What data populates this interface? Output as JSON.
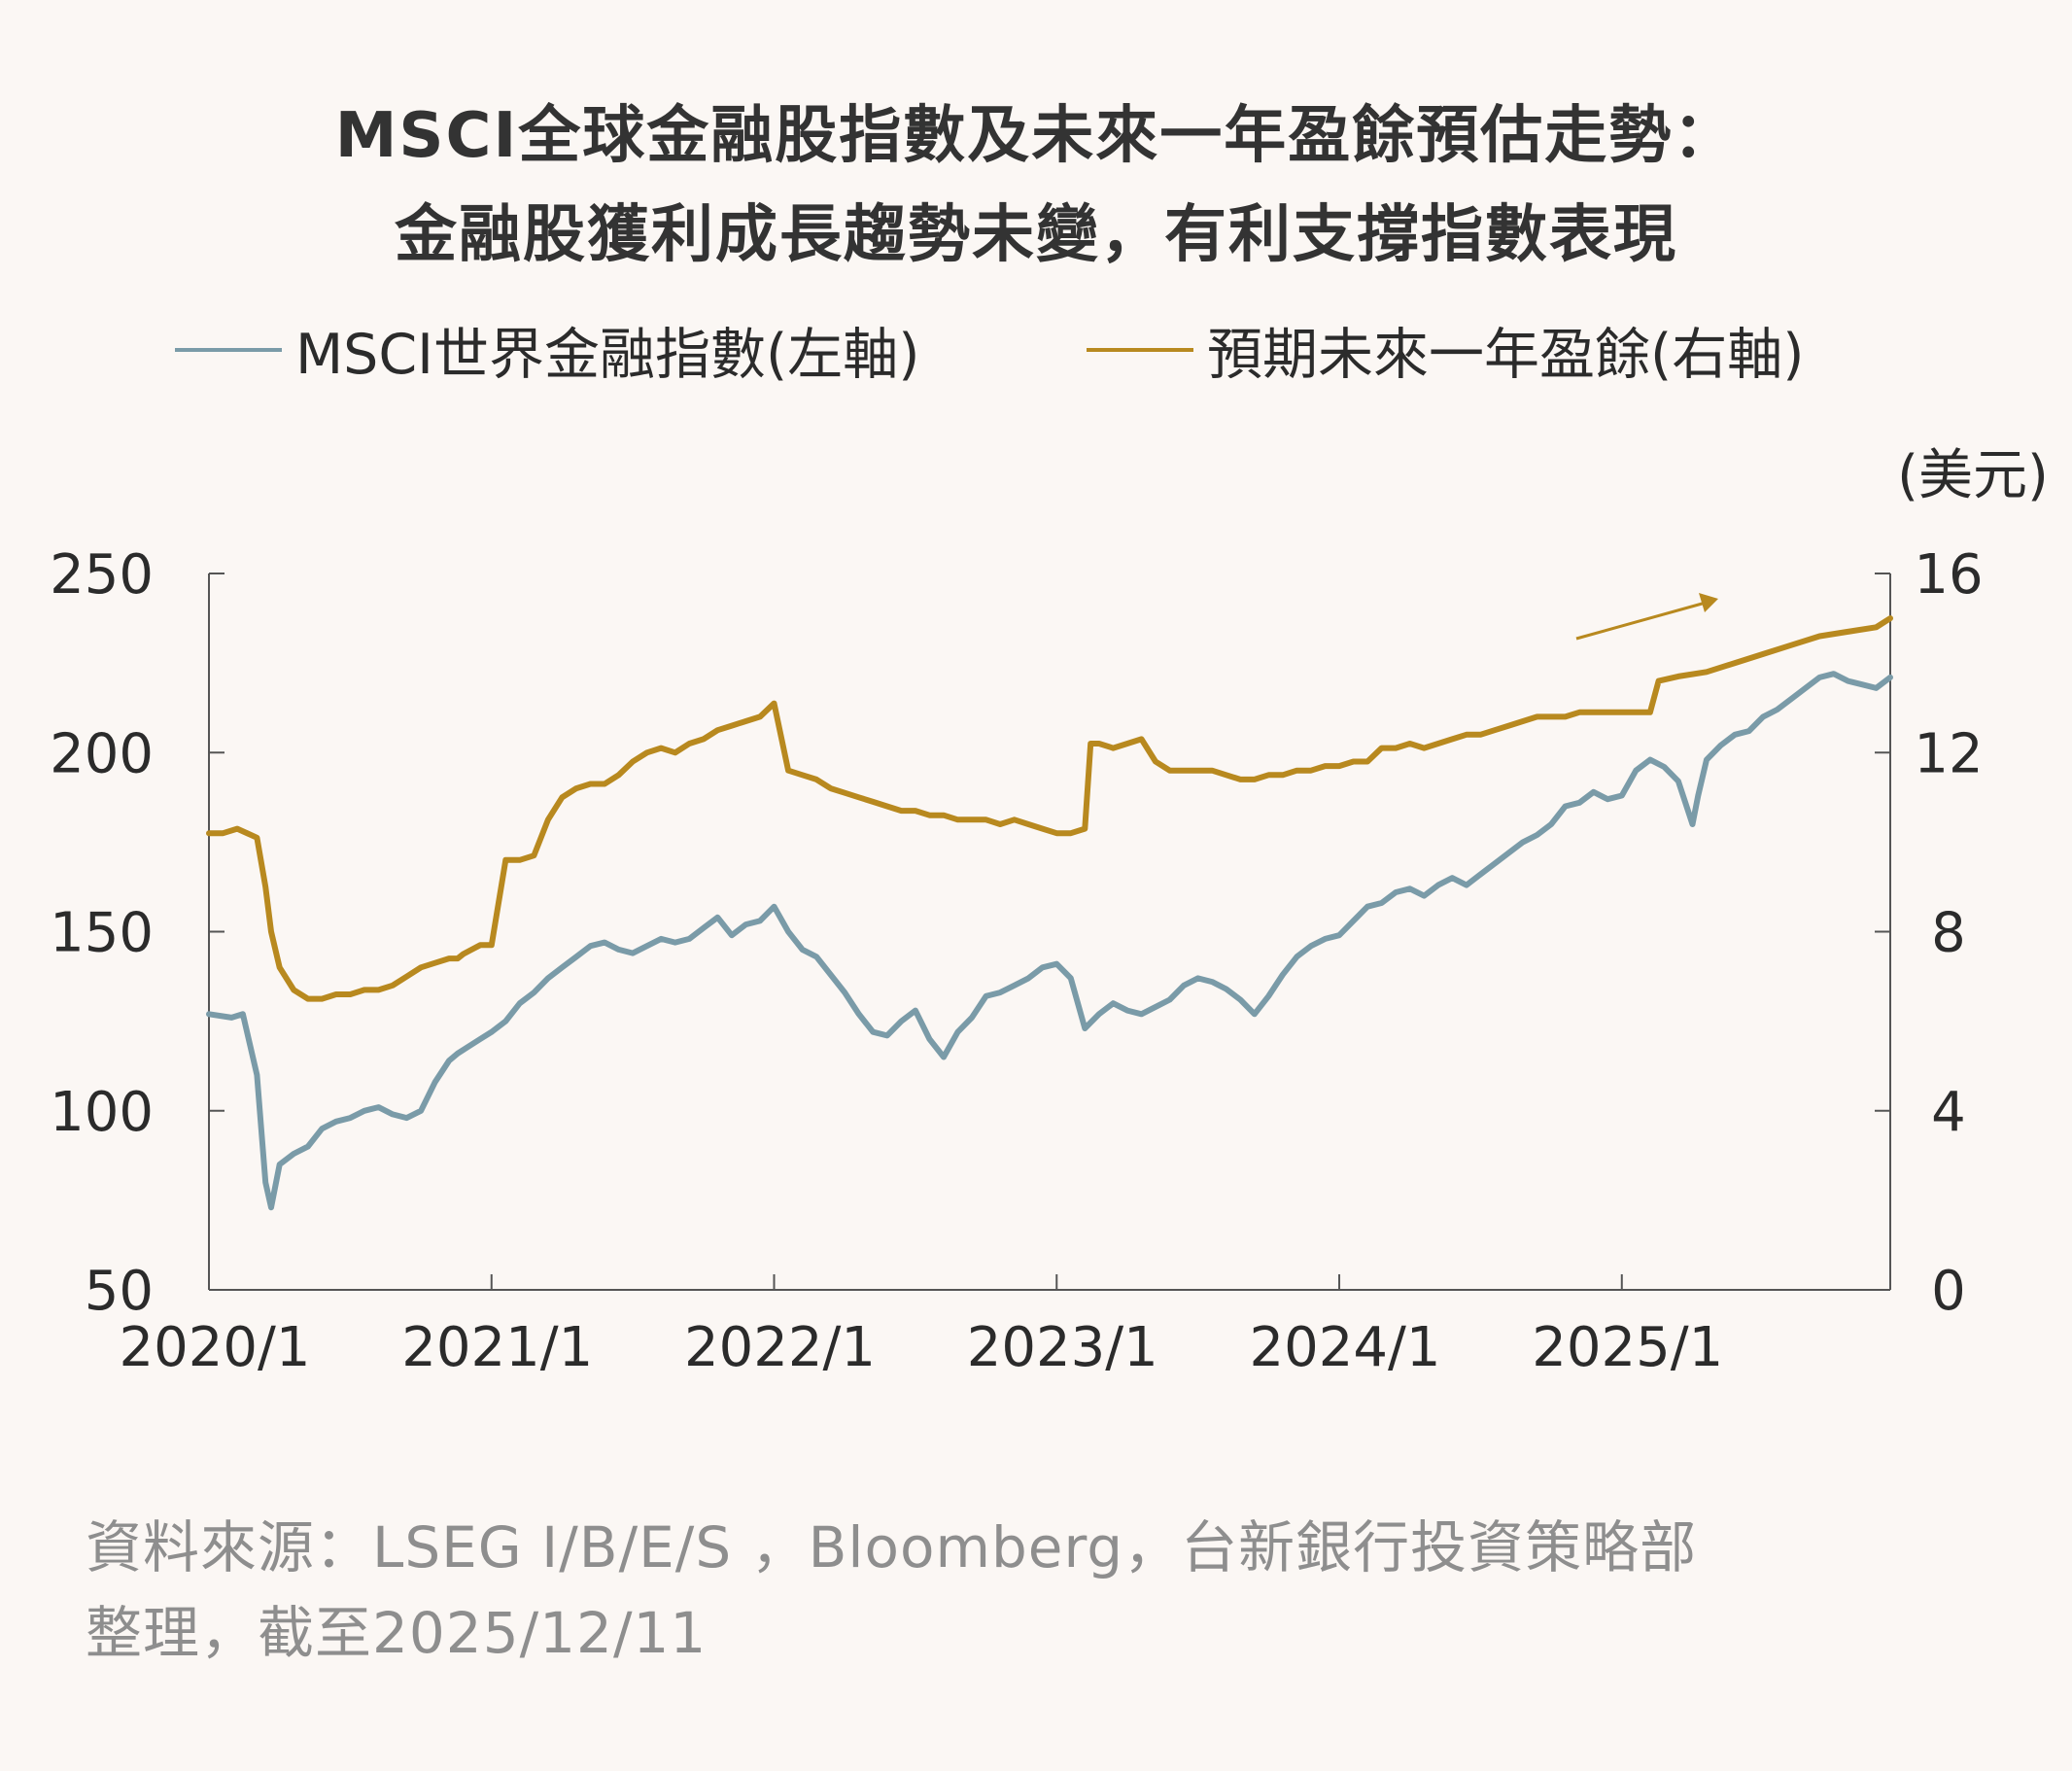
{
  "title": {
    "line1": "MSCI全球金融股指數及未來一年盈餘預估走勢：",
    "line2": "金融股獲利成長趨勢未變，有利支撐指數表現"
  },
  "legend": {
    "items": [
      {
        "label": "MSCI世界金融指數(左軸)",
        "color": "#7A9BA8"
      },
      {
        "label": "預期未來一年盈餘(右軸)",
        "color": "#B8891F"
      }
    ]
  },
  "source": {
    "line1": "資料來源：LSEG I/B/E/S ，Bloomberg，台新銀行投資策略部",
    "line2": "整理，截至2025/12/11"
  },
  "colors": {
    "background": "#FBF7F4",
    "index_line": "#7A9BA8",
    "eps_line": "#B8891F",
    "axis": "#555555",
    "arrow": "#B8891F"
  },
  "chart_data": {
    "type": "line",
    "x_ticks": [
      "2020/1",
      "2021/1",
      "2022/1",
      "2023/1",
      "2024/1",
      "2025/1"
    ],
    "x_range": [
      2020.0,
      2025.95
    ],
    "left_axis": {
      "ticks": [
        "250",
        "200",
        "150",
        "100",
        "50"
      ],
      "ylim": [
        50,
        250
      ]
    },
    "right_axis": {
      "unit": "(美元)",
      "ticks": [
        "16",
        "12",
        "8",
        "4",
        "0"
      ],
      "ylim": [
        0,
        16
      ]
    },
    "grid": false,
    "legend_position": "top",
    "annotation": "upward arrow near 2024/10 to 2025/2 indicating rising earnings trend",
    "series": [
      {
        "name": "MSCI世界金融指數(左軸)",
        "axis": "left",
        "x": [
          2020.0,
          2020.08,
          2020.12,
          2020.17,
          2020.2,
          2020.22,
          2020.25,
          2020.3,
          2020.35,
          2020.4,
          2020.45,
          2020.5,
          2020.55,
          2020.6,
          2020.65,
          2020.7,
          2020.75,
          2020.8,
          2020.85,
          2020.88,
          2020.92,
          2020.96,
          2021.0,
          2021.05,
          2021.1,
          2021.15,
          2021.2,
          2021.25,
          2021.3,
          2021.35,
          2021.4,
          2021.45,
          2021.5,
          2021.55,
          2021.6,
          2021.65,
          2021.7,
          2021.75,
          2021.8,
          2021.85,
          2021.9,
          2021.95,
          2022.0,
          2022.05,
          2022.1,
          2022.15,
          2022.2,
          2022.25,
          2022.3,
          2022.35,
          2022.4,
          2022.45,
          2022.5,
          2022.55,
          2022.6,
          2022.65,
          2022.7,
          2022.75,
          2022.8,
          2022.85,
          2022.9,
          2022.95,
          2023.0,
          2023.05,
          2023.1,
          2023.15,
          2023.2,
          2023.25,
          2023.3,
          2023.35,
          2023.4,
          2023.45,
          2023.5,
          2023.55,
          2023.6,
          2023.65,
          2023.7,
          2023.75,
          2023.8,
          2023.85,
          2023.9,
          2023.95,
          2024.0,
          2024.05,
          2024.1,
          2024.15,
          2024.2,
          2024.25,
          2024.3,
          2024.35,
          2024.4,
          2024.45,
          2024.5,
          2024.55,
          2024.6,
          2024.65,
          2024.7,
          2024.75,
          2024.8,
          2024.85,
          2024.9,
          2024.95,
          2025.0,
          2025.05,
          2025.1,
          2025.15,
          2025.2,
          2025.25,
          2025.27,
          2025.3,
          2025.35,
          2025.4,
          2025.45,
          2025.5,
          2025.55,
          2025.6,
          2025.65,
          2025.7,
          2025.75,
          2025.8,
          2025.85,
          2025.9,
          2025.95
        ],
        "values": [
          127,
          126,
          127,
          110,
          80,
          73,
          85,
          88,
          90,
          95,
          97,
          98,
          100,
          101,
          99,
          98,
          100,
          108,
          114,
          116,
          118,
          120,
          122,
          125,
          130,
          133,
          137,
          140,
          143,
          146,
          147,
          145,
          144,
          146,
          148,
          147,
          148,
          151,
          154,
          149,
          152,
          153,
          157,
          150,
          145,
          143,
          138,
          133,
          127,
          122,
          121,
          125,
          128,
          120,
          115,
          122,
          126,
          132,
          133,
          135,
          137,
          140,
          141,
          137,
          123,
          127,
          130,
          128,
          127,
          129,
          131,
          135,
          137,
          136,
          134,
          131,
          127,
          132,
          138,
          143,
          146,
          148,
          149,
          153,
          157,
          158,
          161,
          162,
          160,
          163,
          165,
          163,
          166,
          169,
          172,
          175,
          177,
          180,
          185,
          186,
          189,
          187,
          188,
          195,
          198,
          196,
          192,
          180,
          188,
          198,
          202,
          205,
          206,
          210,
          212,
          215,
          218,
          221,
          222,
          220,
          219,
          218,
          221
        ]
      },
      {
        "name": "預期未來一年盈餘(右軸)",
        "axis": "right",
        "x": [
          2020.0,
          2020.05,
          2020.1,
          2020.17,
          2020.2,
          2020.22,
          2020.25,
          2020.3,
          2020.35,
          2020.4,
          2020.45,
          2020.5,
          2020.55,
          2020.6,
          2020.65,
          2020.7,
          2020.75,
          2020.8,
          2020.85,
          2020.88,
          2020.9,
          2020.93,
          2020.96,
          2021.0,
          2021.05,
          2021.1,
          2021.15,
          2021.2,
          2021.25,
          2021.3,
          2021.35,
          2021.4,
          2021.45,
          2021.5,
          2021.55,
          2021.6,
          2021.65,
          2021.7,
          2021.75,
          2021.8,
          2021.85,
          2021.9,
          2021.95,
          2022.0,
          2022.05,
          2022.1,
          2022.15,
          2022.2,
          2022.25,
          2022.3,
          2022.35,
          2022.4,
          2022.45,
          2022.5,
          2022.55,
          2022.6,
          2022.65,
          2022.7,
          2022.75,
          2022.8,
          2022.85,
          2022.9,
          2022.95,
          2023.0,
          2023.05,
          2023.1,
          2023.12,
          2023.15,
          2023.2,
          2023.25,
          2023.3,
          2023.35,
          2023.4,
          2023.45,
          2023.5,
          2023.55,
          2023.6,
          2023.65,
          2023.7,
          2023.75,
          2023.8,
          2023.85,
          2023.9,
          2023.95,
          2024.0,
          2024.05,
          2024.1,
          2024.15,
          2024.2,
          2024.25,
          2024.3,
          2024.35,
          2024.4,
          2024.45,
          2024.5,
          2024.55,
          2024.6,
          2024.65,
          2024.7,
          2024.75,
          2024.8,
          2024.85,
          2024.9,
          2024.95,
          2025.0,
          2025.05,
          2025.1,
          2025.13,
          2025.2,
          2025.3,
          2025.4,
          2025.5,
          2025.6,
          2025.7,
          2025.8,
          2025.9,
          2025.95
        ],
        "values": [
          10.2,
          10.2,
          10.3,
          10.1,
          9.0,
          8.0,
          7.2,
          6.7,
          6.5,
          6.5,
          6.6,
          6.6,
          6.7,
          6.7,
          6.8,
          7.0,
          7.2,
          7.3,
          7.4,
          7.4,
          7.5,
          7.6,
          7.7,
          7.7,
          9.6,
          9.6,
          9.7,
          10.5,
          11.0,
          11.2,
          11.3,
          11.3,
          11.5,
          11.8,
          12.0,
          12.1,
          12.0,
          12.2,
          12.3,
          12.5,
          12.6,
          12.7,
          12.8,
          13.1,
          11.6,
          11.5,
          11.4,
          11.2,
          11.1,
          11.0,
          10.9,
          10.8,
          10.7,
          10.7,
          10.6,
          10.6,
          10.5,
          10.5,
          10.5,
          10.4,
          10.5,
          10.4,
          10.3,
          10.2,
          10.2,
          10.3,
          12.2,
          12.2,
          12.1,
          12.2,
          12.3,
          11.8,
          11.6,
          11.6,
          11.6,
          11.6,
          11.5,
          11.4,
          11.4,
          11.5,
          11.5,
          11.6,
          11.6,
          11.7,
          11.7,
          11.8,
          11.8,
          12.1,
          12.1,
          12.2,
          12.1,
          12.2,
          12.3,
          12.4,
          12.4,
          12.5,
          12.6,
          12.7,
          12.8,
          12.8,
          12.8,
          12.9,
          12.9,
          12.9,
          12.9,
          12.9,
          12.9,
          13.6,
          13.7,
          13.8,
          14.0,
          14.2,
          14.4,
          14.6,
          14.7,
          14.8,
          15.0
        ]
      }
    ]
  }
}
